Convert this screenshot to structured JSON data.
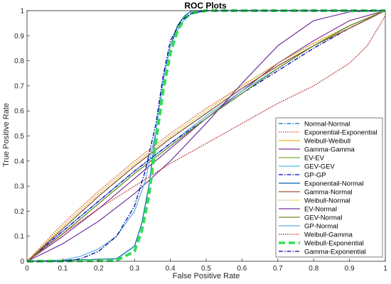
{
  "chart_data": {
    "type": "line",
    "title": "ROC Plots",
    "xlabel": "False Positive Rate",
    "ylabel": "True Positive Rate",
    "xlim": [
      0,
      1
    ],
    "ylim": [
      0,
      1
    ],
    "x_ticks": [
      "0",
      "0.1",
      "0.2",
      "0.3",
      "0.4",
      "0.5",
      "0.6",
      "0.7",
      "0.8",
      "0.9",
      "1"
    ],
    "y_ticks": [
      "0",
      "0.1",
      "0.2",
      "0.3",
      "0.4",
      "0.5",
      "0.6",
      "0.7",
      "0.8",
      "0.9",
      "1"
    ],
    "grid": false,
    "legend_position": "bottom-right",
    "series": [
      {
        "name": "Normal-Normal",
        "color": "#0072BD",
        "dash": "dashdot",
        "x": [
          0,
          0.1,
          0.2,
          0.3,
          0.4,
          0.5,
          0.6,
          0.7,
          0.8,
          0.9,
          1
        ],
        "y": [
          0,
          0.13,
          0.26,
          0.38,
          0.49,
          0.59,
          0.69,
          0.78,
          0.86,
          0.93,
          1
        ]
      },
      {
        "name": "Exponential-Exponential",
        "color": "#D95319",
        "dash": "dotted",
        "x": [
          0,
          0.1,
          0.2,
          0.3,
          0.4,
          0.5,
          0.6,
          0.7,
          0.8,
          0.9,
          1
        ],
        "y": [
          0,
          0.15,
          0.28,
          0.4,
          0.51,
          0.61,
          0.7,
          0.79,
          0.87,
          0.94,
          1
        ]
      },
      {
        "name": "Weibull-Weibull",
        "color": "#EDB120",
        "dash": "solid",
        "x": [
          0,
          0.1,
          0.2,
          0.3,
          0.4,
          0.5,
          0.6,
          0.7,
          0.8,
          0.9,
          1
        ],
        "y": [
          0,
          0.12,
          0.24,
          0.36,
          0.47,
          0.58,
          0.68,
          0.77,
          0.86,
          0.93,
          1
        ]
      },
      {
        "name": "Gamma-Gamma",
        "color": "#7E2F8E",
        "dash": "solid",
        "x": [
          0,
          0.1,
          0.2,
          0.3,
          0.4,
          0.5,
          0.6,
          0.7,
          0.8,
          0.9,
          1
        ],
        "y": [
          0,
          0.1,
          0.21,
          0.33,
          0.45,
          0.57,
          0.68,
          0.79,
          0.88,
          0.96,
          1
        ]
      },
      {
        "name": "EV-EV",
        "color": "#77AC30",
        "dash": "solid",
        "x": [
          0,
          0.1,
          0.2,
          0.3,
          0.4,
          0.5,
          0.6,
          0.7,
          0.8,
          0.9,
          1
        ],
        "y": [
          0,
          0.11,
          0.23,
          0.35,
          0.46,
          0.57,
          0.67,
          0.77,
          0.86,
          0.94,
          1
        ]
      },
      {
        "name": "GEV-GEV",
        "color": "#4DBEEE",
        "dash": "solid",
        "x": [
          0,
          0.1,
          0.2,
          0.3,
          0.4,
          0.5,
          0.6,
          0.7,
          0.8,
          0.9,
          1
        ],
        "y": [
          0,
          0.12,
          0.24,
          0.36,
          0.47,
          0.58,
          0.68,
          0.77,
          0.86,
          0.94,
          1
        ]
      },
      {
        "name": "GP-GP",
        "color": "#0000CC",
        "dash": "dashdot",
        "x": [
          0,
          0.1,
          0.2,
          0.3,
          0.4,
          0.5,
          0.6,
          0.7,
          0.8,
          0.9,
          1
        ],
        "y": [
          0,
          0.12,
          0.24,
          0.36,
          0.47,
          0.57,
          0.67,
          0.76,
          0.85,
          0.93,
          1
        ]
      },
      {
        "name": "Exponentail-Normal",
        "color": "#0060B0",
        "dash": "solid",
        "x": [
          0,
          0.25,
          0.3,
          0.32,
          0.34,
          0.36,
          0.38,
          0.4,
          0.42,
          0.44,
          0.46,
          0.5,
          1
        ],
        "y": [
          0,
          0.01,
          0.06,
          0.15,
          0.3,
          0.52,
          0.72,
          0.86,
          0.94,
          0.98,
          1,
          1,
          1
        ]
      },
      {
        "name": "Gamma-Normal",
        "color": "#A0522D",
        "dash": "solid",
        "x": [
          0,
          0.1,
          0.2,
          0.3,
          0.4,
          0.5,
          0.6,
          0.7,
          0.8,
          0.9,
          1
        ],
        "y": [
          0,
          0.13,
          0.26,
          0.38,
          0.49,
          0.59,
          0.69,
          0.78,
          0.86,
          0.93,
          1
        ]
      },
      {
        "name": "Weibull-Normal",
        "color": "#C8B400",
        "dash": "dotted",
        "x": [
          0,
          0.1,
          0.2,
          0.3,
          0.4,
          0.5,
          0.6,
          0.7,
          0.8,
          0.9,
          1
        ],
        "y": [
          0,
          0.14,
          0.27,
          0.39,
          0.5,
          0.6,
          0.7,
          0.79,
          0.87,
          0.94,
          1
        ]
      },
      {
        "name": "EV-Normal",
        "color": "#7030A0",
        "dash": "solid",
        "x": [
          0,
          0.1,
          0.2,
          0.3,
          0.4,
          0.5,
          0.6,
          0.7,
          0.8,
          0.9,
          1
        ],
        "y": [
          0,
          0.07,
          0.16,
          0.27,
          0.4,
          0.55,
          0.71,
          0.86,
          0.96,
          0.995,
          1
        ]
      },
      {
        "name": "GEV-Normal",
        "color": "#6B8E23",
        "dash": "solid",
        "x": [
          0,
          0.1,
          0.2,
          0.3,
          0.4,
          0.5,
          0.6,
          0.7,
          0.8,
          0.9,
          1
        ],
        "y": [
          0,
          0.11,
          0.23,
          0.35,
          0.46,
          0.57,
          0.67,
          0.77,
          0.86,
          0.94,
          1
        ]
      },
      {
        "name": "GP-Normal",
        "color": "#5DADE2",
        "dash": "solid",
        "x": [
          0,
          0.1,
          0.15,
          0.2,
          0.25,
          0.3,
          0.33,
          0.36,
          0.38,
          0.4,
          0.43,
          0.46,
          0.5,
          1
        ],
        "y": [
          0,
          0.005,
          0.02,
          0.05,
          0.1,
          0.2,
          0.32,
          0.52,
          0.72,
          0.86,
          0.95,
          0.99,
          1,
          1
        ]
      },
      {
        "name": "Weibull-Gamma",
        "color": "#B22222",
        "dash": "dotted",
        "x": [
          0,
          0.1,
          0.2,
          0.3,
          0.4,
          0.5,
          0.6,
          0.7,
          0.8,
          0.9,
          0.95,
          1
        ],
        "y": [
          0,
          0.11,
          0.21,
          0.3,
          0.39,
          0.47,
          0.55,
          0.63,
          0.7,
          0.79,
          0.86,
          0.98
        ]
      },
      {
        "name": "Weibull-Exponential",
        "color": "#33DD55",
        "dash": "dashed-thick",
        "x": [
          0,
          0.25,
          0.3,
          0.32,
          0.34,
          0.36,
          0.38,
          0.4,
          0.42,
          0.44,
          0.46,
          0.5,
          1
        ],
        "y": [
          0,
          0.003,
          0.04,
          0.12,
          0.26,
          0.48,
          0.68,
          0.83,
          0.92,
          0.97,
          0.99,
          1,
          1
        ]
      },
      {
        "name": "Gamma-Exponential",
        "color": "#000099",
        "dash": "dashdot",
        "x": [
          0,
          0.1,
          0.15,
          0.2,
          0.25,
          0.3,
          0.33,
          0.36,
          0.38,
          0.4,
          0.43,
          0.46,
          0.5,
          1
        ],
        "y": [
          0,
          0.0,
          0.01,
          0.04,
          0.1,
          0.22,
          0.36,
          0.55,
          0.74,
          0.88,
          0.96,
          0.99,
          1,
          1
        ]
      }
    ]
  }
}
